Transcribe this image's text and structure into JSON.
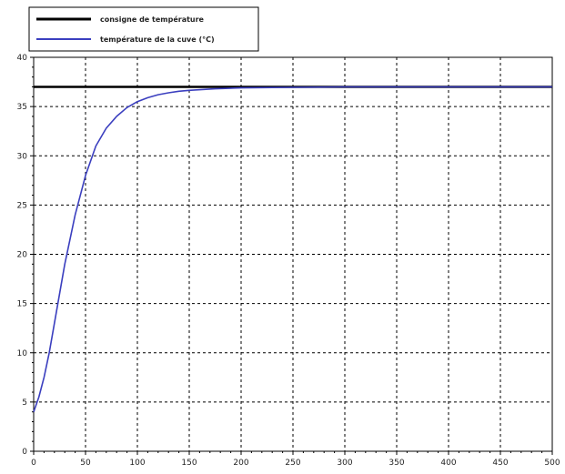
{
  "chart_data": {
    "type": "line",
    "xlim": [
      0,
      500
    ],
    "ylim": [
      0,
      40
    ],
    "x_ticks": [
      0,
      50,
      100,
      150,
      200,
      250,
      300,
      350,
      400,
      450,
      500
    ],
    "y_ticks": [
      0,
      5,
      10,
      15,
      20,
      25,
      30,
      35,
      40
    ],
    "x_tick_labels": [
      "0",
      "50",
      "100",
      "150",
      "200",
      "250",
      "300",
      "350",
      "400",
      "450",
      "500"
    ],
    "y_tick_labels": [
      "0",
      "5",
      "10",
      "15",
      "20",
      "25",
      "30",
      "35",
      "40"
    ],
    "grid": true,
    "legend_position": "top-left",
    "series": [
      {
        "name": "consigne de température",
        "color": "#000000",
        "x": [
          0,
          500
        ],
        "y": [
          37,
          37
        ]
      },
      {
        "name": "température de la cuve (°C)",
        "color": "#3b3fbf",
        "x": [
          0,
          5,
          10,
          15,
          20,
          25,
          30,
          35,
          40,
          45,
          50,
          60,
          70,
          80,
          90,
          100,
          110,
          120,
          130,
          140,
          150,
          175,
          200,
          250,
          300,
          350,
          400,
          450,
          500
        ],
        "y": [
          4,
          5.5,
          7.5,
          10,
          13,
          16,
          19,
          21.5,
          24,
          26,
          28,
          31,
          32.8,
          34,
          34.9,
          35.5,
          35.9,
          36.2,
          36.4,
          36.55,
          36.65,
          36.8,
          36.9,
          36.95,
          37,
          37,
          37,
          37,
          37
        ]
      }
    ]
  }
}
